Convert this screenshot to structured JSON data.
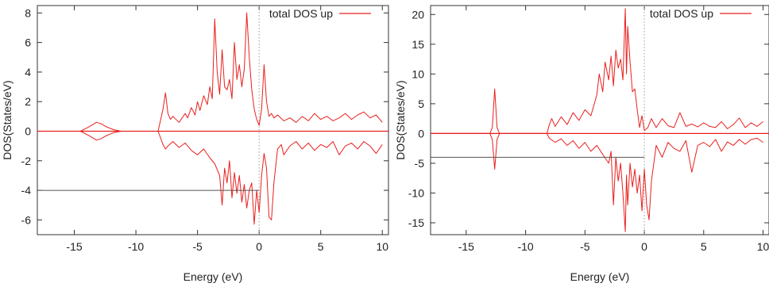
{
  "chart_data": [
    {
      "type": "line",
      "title": "",
      "xlabel": "Energy (eV)",
      "ylabel": "DOS(States/eV)",
      "xlim": [
        -18,
        10.5
      ],
      "ylim": [
        -7,
        8.5
      ],
      "xticks": [
        -15,
        -10,
        -5,
        0,
        5,
        10
      ],
      "yticks": [
        -6,
        -4,
        -2,
        0,
        2,
        4,
        6,
        8
      ],
      "grid": false,
      "legend": {
        "position": "top-right",
        "entries": [
          "total DOS up"
        ]
      },
      "fermi_level": 0,
      "series": [
        {
          "name": "total DOS up",
          "color": "#e8201e",
          "x": [
            -18,
            -14.5,
            -13.8,
            -13.2,
            -12.8,
            -12.4,
            -11.8,
            -11.2,
            -10.5,
            -8.2,
            -7.8,
            -7.6,
            -7.4,
            -7.2,
            -7,
            -6.5,
            -6,
            -5.8,
            -5.5,
            -5.2,
            -5,
            -4.8,
            -4.5,
            -4.2,
            -4,
            -3.8,
            -3.6,
            -3.4,
            -3.2,
            -3,
            -2.8,
            -2.6,
            -2.4,
            -2.2,
            -2,
            -1.8,
            -1.6,
            -1.4,
            -1.2,
            -1,
            -0.8,
            -0.6,
            -0.4,
            -0.2,
            0,
            0.2,
            0.4,
            0.6,
            0.8,
            1,
            1.2,
            1.5,
            2,
            2.5,
            3,
            3.5,
            4,
            4.5,
            5,
            5.5,
            6,
            6.5,
            7,
            7.5,
            8,
            8.5,
            9,
            9.5,
            10
          ],
          "y": [
            0,
            0,
            0.3,
            0.6,
            0.5,
            0.3,
            0.1,
            0,
            0,
            0,
            1.5,
            2.6,
            1.2,
            0.8,
            1,
            0.6,
            1.2,
            0.9,
            1.6,
            1.1,
            2,
            1.4,
            2.4,
            1.8,
            3,
            2.2,
            7.6,
            4,
            2.5,
            5.5,
            3,
            2.8,
            3.5,
            2.2,
            6,
            3.5,
            4.5,
            3,
            4.2,
            8,
            5,
            2.8,
            1.5,
            0.8,
            0.4,
            1.5,
            4.5,
            2,
            1,
            1.2,
            0.9,
            1.1,
            0.7,
            0.9,
            0.6,
            1,
            0.7,
            1.2,
            0.8,
            1,
            0.7,
            0.9,
            1.2,
            0.8,
            1.1,
            1.3,
            0.9,
            1.1,
            0.6
          ]
        },
        {
          "name": "",
          "color": "#e8201e",
          "x": [
            -18,
            -14.5,
            -13.8,
            -13.2,
            -12.8,
            -12.4,
            -11.8,
            -11.2,
            -10.5,
            -8.2,
            -7.8,
            -7.6,
            -7.4,
            -7,
            -6.5,
            -6,
            -5.5,
            -5,
            -4.5,
            -4,
            -3.6,
            -3.2,
            -3,
            -2.8,
            -2.6,
            -2.4,
            -2.2,
            -2,
            -1.8,
            -1.6,
            -1.4,
            -1.2,
            -1,
            -0.8,
            -0.6,
            -0.4,
            -0.2,
            0,
            0.2,
            0.4,
            0.6,
            0.8,
            1,
            1.2,
            1.5,
            1.8,
            2,
            2.5,
            3,
            3.5,
            4,
            4.5,
            5,
            5.5,
            6,
            6.5,
            7,
            7.5,
            8,
            8.5,
            9,
            9.5,
            10
          ],
          "y": [
            0,
            0,
            -0.3,
            -0.6,
            -0.5,
            -0.3,
            -0.1,
            0,
            0,
            0,
            -0.9,
            -1.2,
            -1,
            -0.7,
            -1.1,
            -0.8,
            -1.3,
            -1.6,
            -1.2,
            -1.8,
            -2.2,
            -3,
            -5,
            -2.5,
            -3.5,
            -2,
            -4.5,
            -2.8,
            -4.2,
            -3,
            -4.8,
            -3.6,
            -5.2,
            -4,
            -3.5,
            -6.3,
            -4,
            -5.5,
            -3,
            -1.5,
            -2.5,
            -5.8,
            -6,
            -3.5,
            -1.2,
            -0.9,
            -1.6,
            -1,
            -0.7,
            -1.2,
            -0.8,
            -1.3,
            -0.9,
            -1.1,
            -0.7,
            -1.6,
            -1,
            -0.8,
            -1.2,
            -0.7,
            -1,
            -1.5,
            -0.9
          ]
        },
        {
          "name": "",
          "color": "#555555",
          "x": [
            -18,
            0
          ],
          "y": [
            -4,
            -4
          ]
        }
      ]
    },
    {
      "type": "line",
      "title": "",
      "xlabel": "Energy (eV)",
      "ylabel": "DOS(States/eV)",
      "xlim": [
        -18,
        10.5
      ],
      "ylim": [
        -17,
        21.5
      ],
      "xticks": [
        -15,
        -10,
        -5,
        0,
        5,
        10
      ],
      "yticks": [
        -15,
        -10,
        -5,
        0,
        5,
        10,
        15,
        20
      ],
      "grid": false,
      "legend": {
        "position": "top-right",
        "entries": [
          "total DOS up"
        ]
      },
      "fermi_level": 0,
      "series": [
        {
          "name": "total DOS up",
          "color": "#e8201e",
          "x": [
            -18,
            -13,
            -12.8,
            -12.6,
            -12.4,
            -12.2,
            -12,
            -10,
            -8.2,
            -8,
            -7.8,
            -7.5,
            -7,
            -6.5,
            -6,
            -5.5,
            -5,
            -4.5,
            -4,
            -3.8,
            -3.5,
            -3.3,
            -3,
            -2.8,
            -2.6,
            -2.4,
            -2.2,
            -2,
            -1.8,
            -1.6,
            -1.5,
            -1.4,
            -1.2,
            -1,
            -0.8,
            -0.6,
            -0.4,
            -0.2,
            0,
            0.3,
            0.6,
            1,
            1.5,
            2,
            2.5,
            3,
            3.5,
            4,
            4.5,
            5,
            5.5,
            6,
            6.5,
            7,
            7.5,
            8,
            8.5,
            9,
            9.5,
            10
          ],
          "y": [
            0,
            0,
            1,
            7.5,
            1,
            0,
            0,
            0,
            0,
            1.5,
            2.5,
            1.2,
            2.8,
            1.5,
            3.5,
            2.2,
            4,
            3,
            6.5,
            10,
            7,
            12,
            9,
            13,
            8,
            14,
            11,
            12.5,
            9,
            21,
            10,
            18,
            12,
            7,
            7.5,
            4,
            1,
            3,
            0.5,
            1,
            2.5,
            1,
            2.5,
            1.3,
            1,
            3.5,
            1.2,
            1.6,
            1.1,
            1.8,
            1.2,
            1,
            2,
            0.8,
            1.5,
            2.6,
            1,
            1.8,
            1.2,
            2
          ]
        },
        {
          "name": "",
          "color": "#e8201e",
          "x": [
            -18,
            -13,
            -12.8,
            -12.6,
            -12.4,
            -12.2,
            -12,
            -10,
            -8.2,
            -8,
            -7.5,
            -7,
            -6.5,
            -6,
            -5.5,
            -5,
            -4.5,
            -4,
            -3.5,
            -3,
            -2.8,
            -2.6,
            -2.4,
            -2.2,
            -2,
            -1.8,
            -1.6,
            -1.5,
            -1.4,
            -1.2,
            -1,
            -0.8,
            -0.6,
            -0.4,
            -0.2,
            0,
            0.2,
            0.4,
            0.6,
            0.8,
            1,
            1.5,
            2,
            2.5,
            3,
            3.5,
            4,
            4.5,
            5,
            5.5,
            6,
            6.5,
            7,
            7.5,
            8,
            8.5,
            9,
            9.5,
            10
          ],
          "y": [
            0,
            0,
            -1,
            -6,
            -1,
            0,
            0,
            0,
            0,
            -0.8,
            -1.5,
            -0.9,
            -2,
            -1.2,
            -2.5,
            -1.5,
            -3,
            -2,
            -3.5,
            -5,
            -3,
            -12,
            -4,
            -8,
            -5,
            -10,
            -16.5,
            -7,
            -12,
            -5,
            -9,
            -6,
            -10,
            -7,
            -13,
            -6,
            -12,
            -14.5,
            -8,
            -5,
            -2,
            -4,
            -1.5,
            -2.5,
            -3,
            -1.2,
            -6.5,
            -2,
            -1.5,
            -2.2,
            -1,
            -3,
            -1.4,
            -2,
            -1,
            -1.8,
            -1,
            -0.8,
            -1.5
          ]
        },
        {
          "name": "",
          "color": "#555555",
          "x": [
            -18,
            0
          ],
          "y": [
            -4,
            -4
          ]
        }
      ]
    }
  ]
}
